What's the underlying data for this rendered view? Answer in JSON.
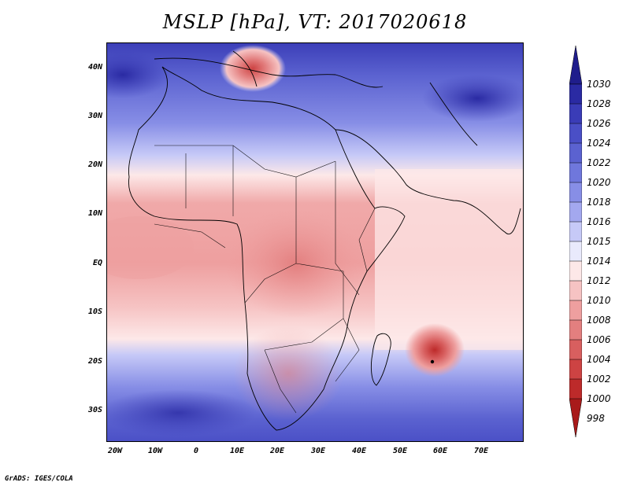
{
  "title": "MSLP [hPa], VT: 2017020618",
  "footer": "GrADS: IGES/COLA",
  "y_axis": {
    "labels": [
      "40N",
      "30N",
      "20N",
      "10N",
      "EQ",
      "10S",
      "20S",
      "30S"
    ]
  },
  "x_axis": {
    "labels": [
      "20W",
      "10W",
      "0",
      "10E",
      "20E",
      "30E",
      "40E",
      "50E",
      "60E",
      "70E"
    ]
  },
  "colorbar": {
    "labels": [
      "1030",
      "1028",
      "1026",
      "1024",
      "1022",
      "1020",
      "1018",
      "1016",
      "1015",
      "1014",
      "1012",
      "1010",
      "1008",
      "1006",
      "1004",
      "1002",
      "1000",
      "998"
    ],
    "colors": [
      "#1f1d8c",
      "#2a2aa3",
      "#3a3cb7",
      "#4a4fc6",
      "#5b62d0",
      "#6f77dc",
      "#878ee6",
      "#a3a8ef",
      "#c6c9f7",
      "#e9eafc",
      "#fde8e8",
      "#f6c3c3",
      "#ee9f9f",
      "#e37f7f",
      "#d85f5f",
      "#cd4343",
      "#bd2a2a",
      "#a81a1a"
    ]
  }
}
